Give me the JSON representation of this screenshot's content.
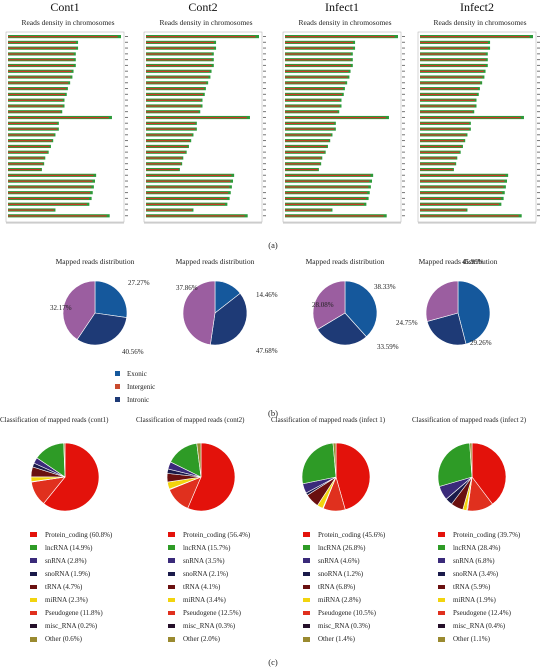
{
  "columns": [
    "Cont1",
    "Cont2",
    "Infect1",
    "Infect2"
  ],
  "panel_labels": {
    "a": "(a)",
    "b": "(b)",
    "c": "(c)"
  },
  "colors": {
    "exonic": "#15589c",
    "intergenic": "#9b5ea0",
    "intronic": "#1e3a76",
    "bar_green": "#2d9a3a",
    "bar_red": "#c93a26"
  },
  "chart_data": [
    {
      "type": "bar",
      "title": "Reads density in chromosomes",
      "panels": [
        "Cont1",
        "Cont2",
        "Infect1",
        "Infect2"
      ],
      "bar_lengths": [
        [
          1.0,
          0.62,
          0.62,
          0.6,
          0.6,
          0.6,
          0.58,
          0.57,
          0.55,
          0.53,
          0.52,
          0.5,
          0.5,
          0.48,
          0.92,
          0.45,
          0.45,
          0.42,
          0.4,
          0.38,
          0.36,
          0.33,
          0.32,
          0.3,
          0.78,
          0.77,
          0.76,
          0.75,
          0.74,
          0.72,
          0.42,
          0.9
        ],
        [
          1.0,
          0.62,
          0.62,
          0.6,
          0.6,
          0.6,
          0.58,
          0.57,
          0.55,
          0.53,
          0.52,
          0.5,
          0.5,
          0.48,
          0.92,
          0.45,
          0.45,
          0.42,
          0.4,
          0.38,
          0.36,
          0.33,
          0.32,
          0.3,
          0.78,
          0.77,
          0.76,
          0.75,
          0.74,
          0.72,
          0.42,
          0.9
        ],
        [
          1.0,
          0.62,
          0.62,
          0.6,
          0.6,
          0.6,
          0.58,
          0.57,
          0.55,
          0.53,
          0.52,
          0.5,
          0.5,
          0.48,
          0.92,
          0.45,
          0.45,
          0.42,
          0.4,
          0.38,
          0.36,
          0.33,
          0.32,
          0.3,
          0.78,
          0.77,
          0.76,
          0.75,
          0.74,
          0.72,
          0.42,
          0.9
        ],
        [
          1.0,
          0.62,
          0.62,
          0.6,
          0.6,
          0.6,
          0.58,
          0.57,
          0.55,
          0.53,
          0.52,
          0.5,
          0.5,
          0.48,
          0.92,
          0.45,
          0.45,
          0.42,
          0.4,
          0.38,
          0.36,
          0.33,
          0.32,
          0.3,
          0.78,
          0.77,
          0.76,
          0.75,
          0.74,
          0.72,
          0.42,
          0.9
        ]
      ]
    },
    {
      "type": "pie",
      "title": "Mapped reads distribution",
      "legend": [
        "Exonic",
        "Intergenic",
        "Intronic"
      ],
      "pies": [
        {
          "name": "Cont1",
          "values": [
            27.27,
            40.56,
            32.17
          ]
        },
        {
          "name": "Cont2",
          "values": [
            14.46,
            47.68,
            37.86
          ]
        },
        {
          "name": "Infect1",
          "values": [
            38.33,
            33.59,
            28.08
          ]
        },
        {
          "name": "Infect2",
          "values": [
            45.99,
            29.26,
            24.75
          ]
        }
      ]
    },
    {
      "type": "pie",
      "categories": [
        "Protein_coding",
        "lncRNA",
        "snRNA",
        "snoRNA",
        "tRNA",
        "miRNA",
        "Pseudogene",
        "misc_RNA",
        "Other"
      ],
      "colors": [
        "#e3120b",
        "#2e9b26",
        "#3a2a7a",
        "#1a1a4a",
        "#6a1010",
        "#f2d40e",
        "#e0301e",
        "#25102a",
        "#9a8a30"
      ],
      "pies": [
        {
          "title": "Classification of mapped reads (cont1)",
          "values": [
            60.8,
            14.9,
            2.8,
            1.9,
            4.7,
            2.3,
            11.8,
            0.2,
            0.6
          ],
          "labels": [
            "Protein_coding (60.8%)",
            "lncRNA (14.9%)",
            "snRNA (2.8%)",
            "snoRNA (1.9%)",
            "tRNA (4.7%)",
            "miRNA (2.3%)",
            "Pseudogene (11.8%)",
            "misc_RNA (0.2%)",
            "Other (0.6%)"
          ]
        },
        {
          "title": "Classification of mapped reads (cont2)",
          "values": [
            56.4,
            15.7,
            3.5,
            2.1,
            4.1,
            3.4,
            12.5,
            0.3,
            2.0
          ],
          "labels": [
            "Protein_coding (56.4%)",
            "lncRNA (15.7%)",
            "snRNA (3.5%)",
            "snoRNA (2.1%)",
            "tRNA (4.1%)",
            "miRNA (3.4%)",
            "Pseudogene (12.5%)",
            "misc_RNA (0.3%)",
            "Other (2.0%)"
          ]
        },
        {
          "title": "Classification of mapped reads (infect 1)",
          "values": [
            45.6,
            26.8,
            4.6,
            1.2,
            6.8,
            2.8,
            10.5,
            0.3,
            1.4
          ],
          "labels": [
            "Protein_coding (45.6%)",
            "lncRNA (26.8%)",
            "snRNA (4.6%)",
            "snoRNA (1.2%)",
            "tRNA (6.8%)",
            "miRNA (2.8%)",
            "Pseudogene (10.5%)",
            "misc_RNA (0.3%)",
            "Other (1.4%)"
          ]
        },
        {
          "title": "Classification of mapped reads (infect 2)",
          "values": [
            39.7,
            28.4,
            6.8,
            3.4,
            5.9,
            1.9,
            12.4,
            0.4,
            1.1
          ],
          "labels": [
            "Protein_coding (39.7%)",
            "lncRNA (28.4%)",
            "snRNA (6.8%)",
            "snoRNA (3.4%)",
            "tRNA (5.9%)",
            "miRNA (1.9%)",
            "Pseudogene (12.4%)",
            "misc_RNA (0.4%)",
            "Other (1.1%)"
          ]
        }
      ]
    }
  ]
}
